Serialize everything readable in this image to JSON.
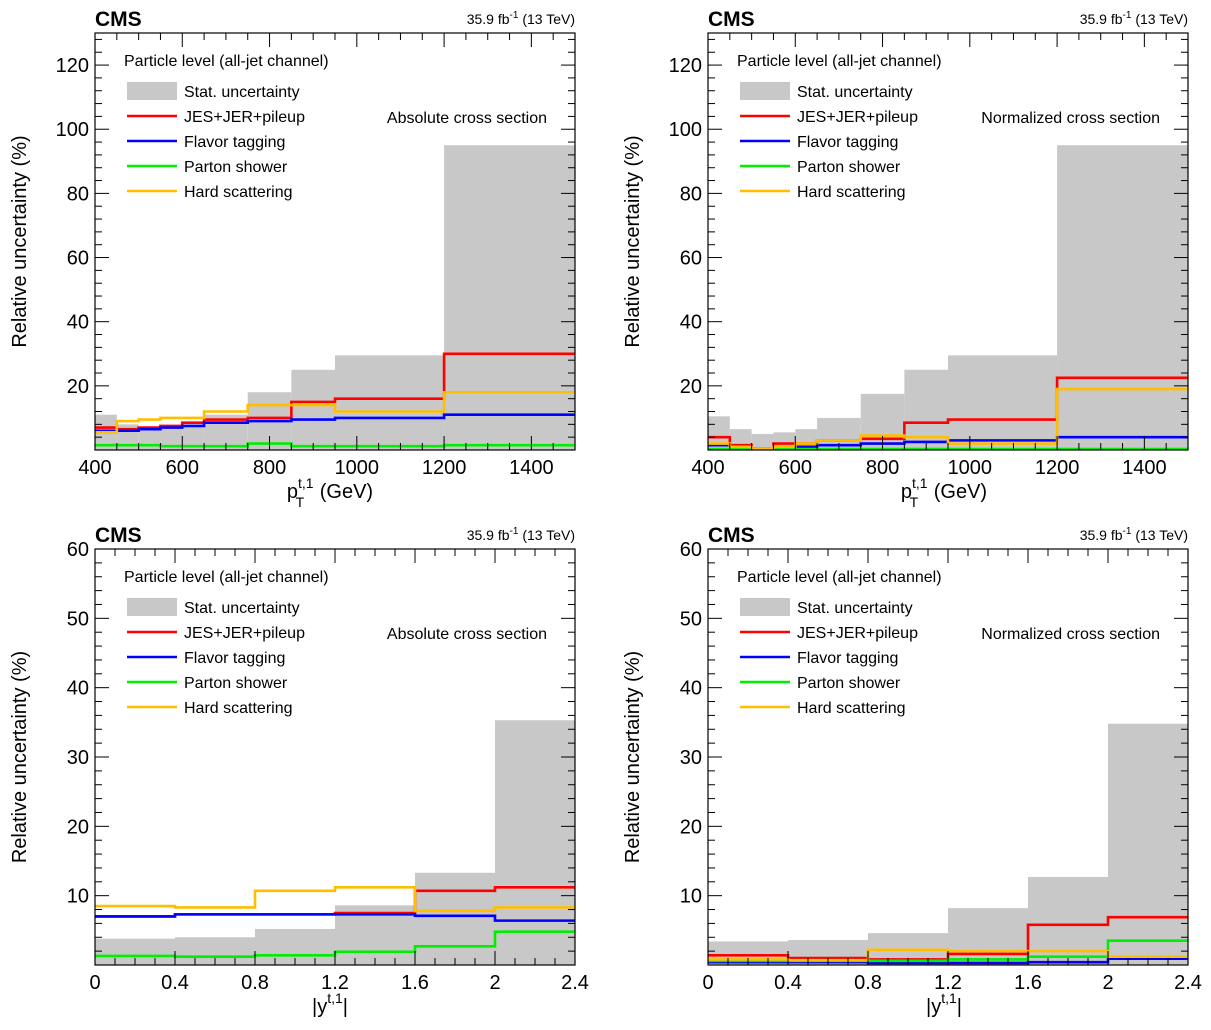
{
  "colors": {
    "stat": "#c8c8c8",
    "jes": "#ff0000",
    "flavor": "#0000ff",
    "parton": "#00ee00",
    "hard": "#ffbf00"
  },
  "chart_data": [
    {
      "type": "area",
      "panel": "top-left",
      "cms": "CMS",
      "lumi": "35.9 fb",
      "lumi_exp": "-1",
      "energy": "(13 TeV)",
      "header": "Particle level (all-jet channel)",
      "annotation": "Absolute cross section",
      "ylabel": "Relative uncertainty (%)",
      "xlabel_main": "p",
      "xlabel_sup": "t,1",
      "xlabel_sub": "T",
      "xlabel_unit": " (GeV)",
      "xlim": [
        400,
        1500
      ],
      "ylim": [
        0,
        130
      ],
      "xticks": [
        "400",
        "600",
        "800",
        "1000",
        "1200",
        "1400"
      ],
      "xtick_values": [
        400,
        600,
        800,
        1000,
        1200,
        1400
      ],
      "yticks": [
        "20",
        "40",
        "60",
        "80",
        "100",
        "120"
      ],
      "ytick_values": [
        20,
        40,
        60,
        80,
        100,
        120
      ],
      "legend": [
        "Stat. uncertainty",
        "JES+JER+pileup",
        "Flavor tagging",
        "Parton shower",
        "Hard scattering"
      ],
      "bin_edges": [
        400,
        450,
        500,
        550,
        600,
        650,
        750,
        850,
        950,
        1200,
        1500
      ],
      "stat": [
        11,
        8,
        7,
        7,
        8,
        11,
        18,
        25,
        29.5,
        95
      ],
      "series": [
        {
          "name": "JES+JER+pileup",
          "key": "jes",
          "values": [
            7,
            6.5,
            7,
            7.5,
            8.5,
            9.5,
            10,
            15,
            16,
            30
          ]
        },
        {
          "name": "Flavor tagging",
          "key": "flavor",
          "values": [
            6,
            6,
            6.5,
            7,
            7.5,
            8.5,
            9,
            9.5,
            10,
            11
          ]
        },
        {
          "name": "Parton shower",
          "key": "parton",
          "values": [
            1.5,
            1.5,
            1.5,
            1.2,
            1.2,
            1.2,
            2,
            1.2,
            1.2,
            1.5
          ]
        },
        {
          "name": "Hard scattering",
          "key": "hard",
          "values": [
            5.5,
            9,
            9.5,
            10,
            10,
            12,
            14,
            14,
            12,
            18
          ]
        }
      ]
    },
    {
      "type": "area",
      "panel": "top-right",
      "cms": "CMS",
      "lumi": "35.9 fb",
      "lumi_exp": "-1",
      "energy": "(13 TeV)",
      "header": "Particle level (all-jet channel)",
      "annotation": "Normalized cross section",
      "ylabel": "Relative uncertainty (%)",
      "xlabel_main": "p",
      "xlabel_sup": "t,1",
      "xlabel_sub": "T",
      "xlabel_unit": " (GeV)",
      "xlim": [
        400,
        1500
      ],
      "ylim": [
        0,
        130
      ],
      "xticks": [
        "400",
        "600",
        "800",
        "1000",
        "1200",
        "1400"
      ],
      "xtick_values": [
        400,
        600,
        800,
        1000,
        1200,
        1400
      ],
      "yticks": [
        "20",
        "40",
        "60",
        "80",
        "100",
        "120"
      ],
      "ytick_values": [
        20,
        40,
        60,
        80,
        100,
        120
      ],
      "legend": [
        "Stat. uncertainty",
        "JES+JER+pileup",
        "Flavor tagging",
        "Parton shower",
        "Hard scattering"
      ],
      "bin_edges": [
        400,
        450,
        500,
        550,
        600,
        650,
        750,
        850,
        950,
        1200,
        1500
      ],
      "stat": [
        10.5,
        6.5,
        5,
        5.5,
        6.5,
        10,
        17.5,
        25,
        29.5,
        95
      ],
      "series": [
        {
          "name": "JES+JER+pileup",
          "key": "jes",
          "values": [
            4,
            1.5,
            0.5,
            2,
            2,
            3,
            3.5,
            8.5,
            9.5,
            22.5
          ]
        },
        {
          "name": "Flavor tagging",
          "key": "flavor",
          "values": [
            1.5,
            1,
            0.5,
            1,
            1,
            1.5,
            2,
            2.5,
            3,
            4
          ]
        },
        {
          "name": "Parton shower",
          "key": "parton",
          "values": [
            0.3,
            0.3,
            0.3,
            0.3,
            0.3,
            0.3,
            0.3,
            0.3,
            0.3,
            0.3
          ]
        },
        {
          "name": "Hard scattering",
          "key": "hard",
          "values": [
            2,
            1,
            0.5,
            1,
            2,
            3,
            4.5,
            4,
            2,
            19
          ]
        }
      ]
    },
    {
      "type": "area",
      "panel": "bottom-left",
      "cms": "CMS",
      "lumi": "35.9 fb",
      "lumi_exp": "-1",
      "energy": "(13 TeV)",
      "header": "Particle level (all-jet channel)",
      "annotation": "Absolute cross section",
      "ylabel": "Relative uncertainty (%)",
      "xlabel_main": "|y",
      "xlabel_sup": "t,1",
      "xlabel_sub": "",
      "xlabel_unit": "|",
      "xlim": [
        0,
        2.4
      ],
      "ylim": [
        0,
        60
      ],
      "xticks": [
        "0",
        "0.4",
        "0.8",
        "1.2",
        "1.6",
        "2",
        "2.4"
      ],
      "xtick_values": [
        0,
        0.4,
        0.8,
        1.2,
        1.6,
        2,
        2.4
      ],
      "yticks": [
        "10",
        "20",
        "30",
        "40",
        "50",
        "60"
      ],
      "ytick_values": [
        10,
        20,
        30,
        40,
        50,
        60
      ],
      "legend": [
        "Stat. uncertainty",
        "JES+JER+pileup",
        "Flavor tagging",
        "Parton shower",
        "Hard scattering"
      ],
      "bin_edges": [
        0,
        0.4,
        0.8,
        1.2,
        1.6,
        2.0,
        2.4
      ],
      "stat": [
        3.8,
        4,
        5.2,
        8.6,
        13.3,
        35.3
      ],
      "series": [
        {
          "name": "JES+JER+pileup",
          "key": "jes",
          "values": [
            7,
            7.3,
            7.3,
            7.5,
            10.7,
            11.2
          ]
        },
        {
          "name": "Flavor tagging",
          "key": "flavor",
          "values": [
            7,
            7.3,
            7.3,
            7.3,
            7.1,
            6.4
          ]
        },
        {
          "name": "Parton shower",
          "key": "parton",
          "values": [
            1.3,
            1.2,
            1.4,
            1.9,
            2.7,
            4.8
          ]
        },
        {
          "name": "Hard scattering",
          "key": "hard",
          "values": [
            8.5,
            8.3,
            10.7,
            11.2,
            7.8,
            8.3
          ]
        }
      ]
    },
    {
      "type": "area",
      "panel": "bottom-right",
      "cms": "CMS",
      "lumi": "35.9 fb",
      "lumi_exp": "-1",
      "energy": "(13 TeV)",
      "header": "Particle level (all-jet channel)",
      "annotation": "Normalized cross section",
      "ylabel": "Relative uncertainty (%)",
      "xlabel_main": "|y",
      "xlabel_sup": "t,1",
      "xlabel_sub": "",
      "xlabel_unit": "|",
      "xlim": [
        0,
        2.4
      ],
      "ylim": [
        0,
        60
      ],
      "xticks": [
        "0",
        "0.4",
        "0.8",
        "1.2",
        "1.6",
        "2",
        "2.4"
      ],
      "xtick_values": [
        0,
        0.4,
        0.8,
        1.2,
        1.6,
        2,
        2.4
      ],
      "yticks": [
        "10",
        "20",
        "30",
        "40",
        "50",
        "60"
      ],
      "ytick_values": [
        10,
        20,
        30,
        40,
        50,
        60
      ],
      "legend": [
        "Stat. uncertainty",
        "JES+JER+pileup",
        "Flavor tagging",
        "Parton shower",
        "Hard scattering"
      ],
      "bin_edges": [
        0,
        0.4,
        0.8,
        1.2,
        1.6,
        2.0,
        2.4
      ],
      "stat": [
        3.4,
        3.6,
        4.6,
        8.2,
        12.7,
        34.8
      ],
      "series": [
        {
          "name": "JES+JER+pileup",
          "key": "jes",
          "values": [
            1.4,
            1,
            0.8,
            1.6,
            5.8,
            6.9
          ]
        },
        {
          "name": "Flavor tagging",
          "key": "flavor",
          "values": [
            0.4,
            0.4,
            0.3,
            0.3,
            0.4,
            0.9
          ]
        },
        {
          "name": "Parton shower",
          "key": "parton",
          "values": [
            0.6,
            0.6,
            0.6,
            0.8,
            1.2,
            3.5
          ]
        },
        {
          "name": "Hard scattering",
          "key": "hard",
          "values": [
            0.8,
            0.7,
            2.2,
            2,
            2,
            1.2
          ]
        }
      ]
    }
  ]
}
